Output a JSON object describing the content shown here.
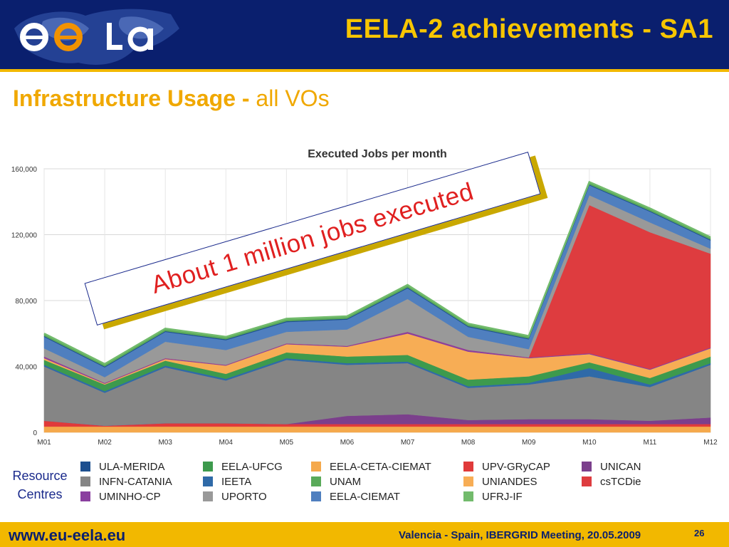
{
  "header": {
    "title": "EELA-2 achievements - SA1",
    "logo_text": "ee la"
  },
  "subtitle": {
    "bold": "Infrastructure Usage - ",
    "light": "all VOs"
  },
  "callout": {
    "text": "About 1 million jobs executed"
  },
  "legend_caption": {
    "line1": "Resource",
    "line2": "Centres"
  },
  "footer": {
    "url": "www.eu-eela.eu",
    "event": "Valencia - Spain, IBERGRID Meeting, 20.05.2009",
    "page": "26"
  },
  "chart_data": {
    "type": "area",
    "stacked": true,
    "title": "Executed Jobs per month",
    "xlabel": "",
    "ylabel": "",
    "ylim": [
      0,
      160000
    ],
    "yticks": [
      "0",
      "40,000",
      "80,000",
      "120,000",
      "160,000"
    ],
    "grid": true,
    "legend_position": "bottom",
    "categories": [
      "M01",
      "M02",
      "M03",
      "M04",
      "M05",
      "M06",
      "M07",
      "M08",
      "M09",
      "M10",
      "M11",
      "M12"
    ],
    "series": [
      {
        "name": "EELA-CETA-CIEMAT",
        "color": "#f5a94c",
        "values": [
          3500,
          3500,
          3500,
          3500,
          3500,
          3500,
          3500,
          3500,
          3500,
          3500,
          3500,
          3500
        ]
      },
      {
        "name": "UPV-GRyCAP",
        "color": "#e03a3a",
        "values": [
          3500,
          500,
          2000,
          2000,
          1500,
          1500,
          1500,
          1500,
          1500,
          1500,
          1500,
          1500
        ]
      },
      {
        "name": "UNICAN",
        "color": "#7b3f8c",
        "values": [
          0,
          0,
          0,
          0,
          0,
          5000,
          6000,
          2500,
          3000,
          3000,
          2000,
          4000
        ]
      },
      {
        "name": "INFN-CATANIA",
        "color": "#858585",
        "values": [
          33000,
          20000,
          34000,
          26000,
          39000,
          31000,
          31000,
          19500,
          21000,
          26000,
          20500,
          32000
        ]
      },
      {
        "name": "IEETA",
        "color": "#2f6aa8",
        "values": [
          1000,
          1000,
          1000,
          1000,
          1000,
          1000,
          1000,
          1000,
          1000,
          5000,
          1500,
          1000
        ]
      },
      {
        "name": "EELA-UFCG",
        "color": "#3d9a4d",
        "values": [
          3000,
          4000,
          3000,
          3000,
          3500,
          4000,
          4000,
          4000,
          4000,
          3500,
          4000,
          4000
        ]
      },
      {
        "name": "UNIANDES",
        "color": "#f7ad55",
        "values": [
          1000,
          500,
          1000,
          5000,
          5000,
          6000,
          13000,
          17000,
          11000,
          5000,
          5000,
          5000
        ]
      },
      {
        "name": "UMINHO-CP",
        "color": "#8a3f9f",
        "values": [
          1000,
          500,
          500,
          500,
          500,
          500,
          1000,
          1000,
          500,
          500,
          500,
          500
        ]
      },
      {
        "name": "csTCDie",
        "color": "#de3c3f",
        "values": [
          0,
          0,
          0,
          0,
          0,
          0,
          0,
          0,
          0,
          90000,
          83000,
          57000
        ]
      },
      {
        "name": "UPORTO",
        "color": "#999999",
        "values": [
          5000,
          3500,
          10000,
          9000,
          7000,
          10000,
          20000,
          8000,
          5000,
          6000,
          6000,
          3000
        ]
      },
      {
        "name": "EELA-CIEMAT",
        "color": "#4f7fbf",
        "values": [
          7000,
          6000,
          6000,
          6000,
          6000,
          6000,
          6500,
          6000,
          6000,
          6000,
          6500,
          5000
        ]
      },
      {
        "name": "ULA-MERIDA",
        "color": "#1d4f8f",
        "values": [
          500,
          500,
          500,
          500,
          500,
          500,
          500,
          500,
          500,
          500,
          500,
          500
        ]
      },
      {
        "name": "UNAM",
        "color": "#5aaa5a",
        "values": [
          1000,
          1000,
          1000,
          1000,
          1000,
          1000,
          1000,
          1000,
          1000,
          1000,
          1000,
          1000
        ]
      },
      {
        "name": "UFRJ-IF",
        "color": "#72bb6c",
        "values": [
          500,
          500,
          500,
          500,
          500,
          500,
          500,
          500,
          500,
          500,
          500,
          500
        ]
      }
    ],
    "legend": [
      [
        "ULA-MERIDA",
        "EELA-UFCG",
        "EELA-CETA-CIEMAT",
        "UPV-GRyCAP",
        "UNICAN"
      ],
      [
        "INFN-CATANIA",
        "IEETA",
        "UNAM",
        "UNIANDES",
        "csTCDie"
      ],
      [
        "UMINHO-CP",
        "UPORTO",
        "EELA-CIEMAT",
        "UFRJ-IF"
      ]
    ]
  }
}
